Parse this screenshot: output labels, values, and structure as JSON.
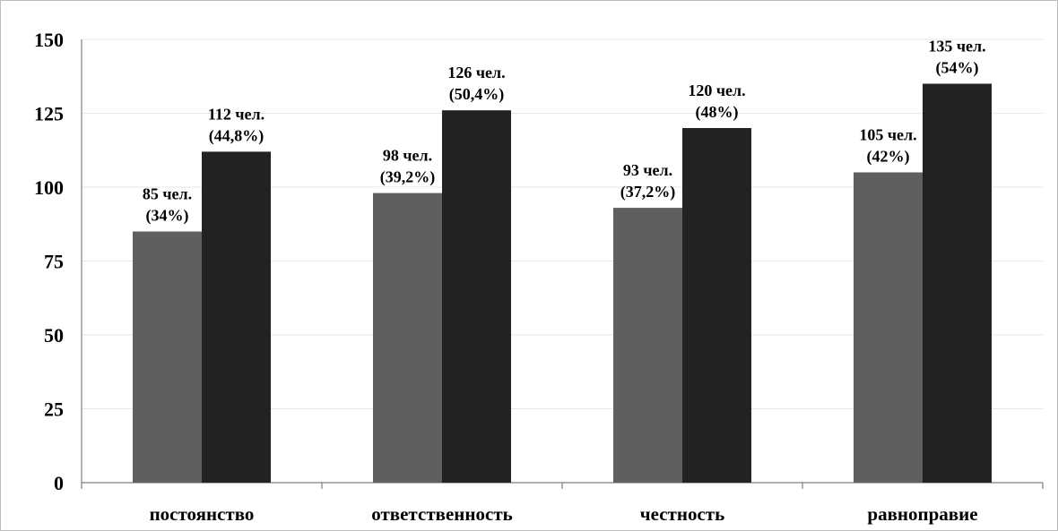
{
  "chart_data": {
    "type": "bar",
    "categories": [
      "постоянство",
      "ответственность",
      "честность",
      "равноправие"
    ],
    "series": [
      {
        "values": [
          85,
          98,
          93,
          105
        ],
        "labels": [
          [
            "85 чел.",
            "(34%)"
          ],
          [
            "98 чел.",
            "(39,2%)"
          ],
          [
            "93 чел.",
            "(37,2%)"
          ],
          [
            "105 чел.",
            "(42%)"
          ]
        ]
      },
      {
        "values": [
          112,
          126,
          120,
          135
        ],
        "labels": [
          [
            "112 чел.",
            "(44,8%)"
          ],
          [
            "126 чел.",
            "(50,4%)"
          ],
          [
            "120 чел.",
            "(48%)"
          ],
          [
            "135 чел.",
            "(54%)"
          ]
        ]
      }
    ],
    "ylim": [
      0,
      150
    ],
    "yticks": [
      "0",
      "25",
      "50",
      "75",
      "100",
      "125",
      "150"
    ],
    "grid": true,
    "colors": [
      "#5f5f5f",
      "#222222"
    ],
    "title": "",
    "xlabel": "",
    "ylabel": ""
  }
}
